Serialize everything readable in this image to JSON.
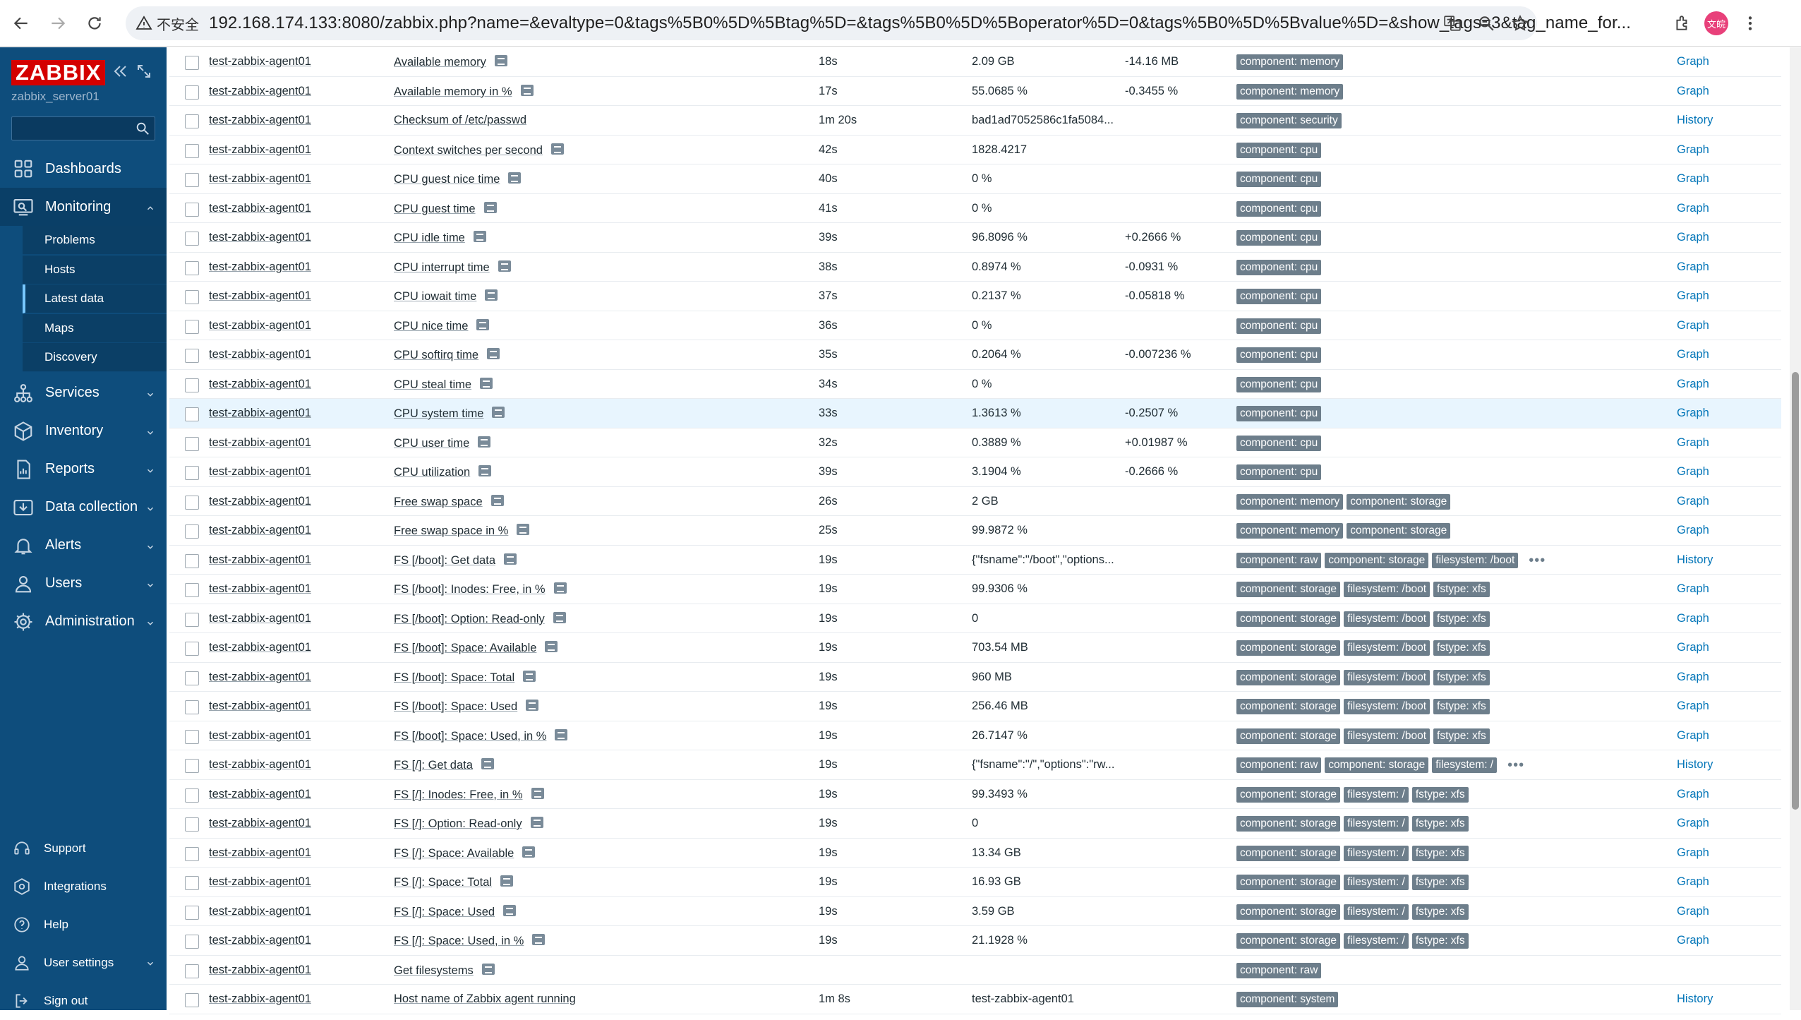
{
  "browser": {
    "insecure_label": "不安全",
    "url": "192.168.174.133:8080/zabbix.php?name=&evaltype=0&tags%5B0%5D%5Btag%5D=&tags%5B0%5D%5Boperator%5D=0&tags%5B0%5D%5Bvalue%5D=&show_tags=3&tag_name_for...",
    "avatar_label": "文皖"
  },
  "sidebar": {
    "logo": "ZABBIX",
    "server": "zabbix_server01",
    "search_placeholder": "",
    "menu": [
      {
        "label": "Dashboards",
        "icon": "dashboards-icon"
      },
      {
        "label": "Monitoring",
        "icon": "monitoring-icon",
        "expanded": true,
        "children": [
          "Problems",
          "Hosts",
          "Latest data",
          "Maps",
          "Discovery"
        ],
        "active_child": "Latest data"
      },
      {
        "label": "Services",
        "icon": "services-icon"
      },
      {
        "label": "Inventory",
        "icon": "inventory-icon"
      },
      {
        "label": "Reports",
        "icon": "reports-icon"
      },
      {
        "label": "Data collection",
        "icon": "data-collection-icon"
      },
      {
        "label": "Alerts",
        "icon": "alerts-icon"
      },
      {
        "label": "Users",
        "icon": "users-icon"
      },
      {
        "label": "Administration",
        "icon": "administration-icon"
      }
    ],
    "bottom": [
      {
        "label": "Support",
        "icon": "support-icon"
      },
      {
        "label": "Integrations",
        "icon": "integrations-icon"
      },
      {
        "label": "Help",
        "icon": "help-icon"
      },
      {
        "label": "User settings",
        "icon": "user-settings-icon"
      },
      {
        "label": "Sign out",
        "icon": "sign-out-icon"
      }
    ]
  },
  "rows": [
    {
      "host": "test-zabbix-agent01",
      "item": "Available memory",
      "qm": true,
      "age": "18s",
      "value": "2.09 GB",
      "change": "-14.16 MB",
      "tags": [
        "component: memory"
      ],
      "link": "Graph"
    },
    {
      "host": "test-zabbix-agent01",
      "item": "Available memory in %",
      "qm": true,
      "age": "17s",
      "value": "55.0685 %",
      "change": "-0.3455 %",
      "tags": [
        "component: memory"
      ],
      "link": "Graph"
    },
    {
      "host": "test-zabbix-agent01",
      "item": "Checksum of /etc/passwd",
      "qm": false,
      "age": "1m 20s",
      "value": "bad1ad7052586c1fa5084...",
      "change": "",
      "tags": [
        "component: security"
      ],
      "link": "History"
    },
    {
      "host": "test-zabbix-agent01",
      "item": "Context switches per second",
      "qm": true,
      "age": "42s",
      "value": "1828.4217",
      "change": "",
      "tags": [
        "component: cpu"
      ],
      "link": "Graph"
    },
    {
      "host": "test-zabbix-agent01",
      "item": "CPU guest nice time",
      "qm": true,
      "age": "40s",
      "value": "0 %",
      "change": "",
      "tags": [
        "component: cpu"
      ],
      "link": "Graph"
    },
    {
      "host": "test-zabbix-agent01",
      "item": "CPU guest time",
      "qm": true,
      "age": "41s",
      "value": "0 %",
      "change": "",
      "tags": [
        "component: cpu"
      ],
      "link": "Graph"
    },
    {
      "host": "test-zabbix-agent01",
      "item": "CPU idle time",
      "qm": true,
      "age": "39s",
      "value": "96.8096 %",
      "change": "+0.2666 %",
      "tags": [
        "component: cpu"
      ],
      "link": "Graph"
    },
    {
      "host": "test-zabbix-agent01",
      "item": "CPU interrupt time",
      "qm": true,
      "age": "38s",
      "value": "0.8974 %",
      "change": "-0.0931 %",
      "tags": [
        "component: cpu"
      ],
      "link": "Graph"
    },
    {
      "host": "test-zabbix-agent01",
      "item": "CPU iowait time",
      "qm": true,
      "age": "37s",
      "value": "0.2137 %",
      "change": "-0.05818 %",
      "tags": [
        "component: cpu"
      ],
      "link": "Graph"
    },
    {
      "host": "test-zabbix-agent01",
      "item": "CPU nice time",
      "qm": true,
      "age": "36s",
      "value": "0 %",
      "change": "",
      "tags": [
        "component: cpu"
      ],
      "link": "Graph"
    },
    {
      "host": "test-zabbix-agent01",
      "item": "CPU softirq time",
      "qm": true,
      "age": "35s",
      "value": "0.2064 %",
      "change": "-0.007236 %",
      "tags": [
        "component: cpu"
      ],
      "link": "Graph"
    },
    {
      "host": "test-zabbix-agent01",
      "item": "CPU steal time",
      "qm": true,
      "age": "34s",
      "value": "0 %",
      "change": "",
      "tags": [
        "component: cpu"
      ],
      "link": "Graph"
    },
    {
      "host": "test-zabbix-agent01",
      "item": "CPU system time",
      "qm": true,
      "age": "33s",
      "value": "1.3613 %",
      "change": "-0.2507 %",
      "tags": [
        "component: cpu"
      ],
      "link": "Graph",
      "highlight": true
    },
    {
      "host": "test-zabbix-agent01",
      "item": "CPU user time",
      "qm": true,
      "age": "32s",
      "value": "0.3889 %",
      "change": "+0.01987 %",
      "tags": [
        "component: cpu"
      ],
      "link": "Graph"
    },
    {
      "host": "test-zabbix-agent01",
      "item": "CPU utilization",
      "qm": true,
      "age": "39s",
      "value": "3.1904 %",
      "change": "-0.2666 %",
      "tags": [
        "component: cpu"
      ],
      "link": "Graph"
    },
    {
      "host": "test-zabbix-agent01",
      "item": "Free swap space",
      "qm": true,
      "age": "26s",
      "value": "2 GB",
      "change": "",
      "tags": [
        "component: memory",
        "component: storage"
      ],
      "link": "Graph"
    },
    {
      "host": "test-zabbix-agent01",
      "item": "Free swap space in %",
      "qm": true,
      "age": "25s",
      "value": "99.9872 %",
      "change": "",
      "tags": [
        "component: memory",
        "component: storage"
      ],
      "link": "Graph"
    },
    {
      "host": "test-zabbix-agent01",
      "item": "FS [/boot]: Get data",
      "qm": true,
      "age": "19s",
      "value": "{\"fsname\":\"/boot\",\"options...",
      "change": "",
      "tags": [
        "component: raw",
        "component: storage",
        "filesystem: /boot"
      ],
      "more": true,
      "link": "History"
    },
    {
      "host": "test-zabbix-agent01",
      "item": "FS [/boot]: Inodes: Free, in %",
      "qm": true,
      "age": "19s",
      "value": "99.9306 %",
      "change": "",
      "tags": [
        "component: storage",
        "filesystem: /boot",
        "fstype: xfs"
      ],
      "link": "Graph"
    },
    {
      "host": "test-zabbix-agent01",
      "item": "FS [/boot]: Option: Read-only",
      "qm": true,
      "age": "19s",
      "value": "0",
      "change": "",
      "tags": [
        "component: storage",
        "filesystem: /boot",
        "fstype: xfs"
      ],
      "link": "Graph"
    },
    {
      "host": "test-zabbix-agent01",
      "item": "FS [/boot]: Space: Available",
      "qm": true,
      "age": "19s",
      "value": "703.54 MB",
      "change": "",
      "tags": [
        "component: storage",
        "filesystem: /boot",
        "fstype: xfs"
      ],
      "link": "Graph"
    },
    {
      "host": "test-zabbix-agent01",
      "item": "FS [/boot]: Space: Total",
      "qm": true,
      "age": "19s",
      "value": "960 MB",
      "change": "",
      "tags": [
        "component: storage",
        "filesystem: /boot",
        "fstype: xfs"
      ],
      "link": "Graph"
    },
    {
      "host": "test-zabbix-agent01",
      "item": "FS [/boot]: Space: Used",
      "qm": true,
      "age": "19s",
      "value": "256.46 MB",
      "change": "",
      "tags": [
        "component: storage",
        "filesystem: /boot",
        "fstype: xfs"
      ],
      "link": "Graph"
    },
    {
      "host": "test-zabbix-agent01",
      "item": "FS [/boot]: Space: Used, in %",
      "qm": true,
      "age": "19s",
      "value": "26.7147 %",
      "change": "",
      "tags": [
        "component: storage",
        "filesystem: /boot",
        "fstype: xfs"
      ],
      "link": "Graph"
    },
    {
      "host": "test-zabbix-agent01",
      "item": "FS [/]: Get data",
      "qm": true,
      "age": "19s",
      "value": "{\"fsname\":\"/\",\"options\":\"rw...",
      "change": "",
      "tags": [
        "component: raw",
        "component: storage",
        "filesystem: /"
      ],
      "more": true,
      "link": "History"
    },
    {
      "host": "test-zabbix-agent01",
      "item": "FS [/]: Inodes: Free, in %",
      "qm": true,
      "age": "19s",
      "value": "99.3493 %",
      "change": "",
      "tags": [
        "component: storage",
        "filesystem: /",
        "fstype: xfs"
      ],
      "link": "Graph"
    },
    {
      "host": "test-zabbix-agent01",
      "item": "FS [/]: Option: Read-only",
      "qm": true,
      "age": "19s",
      "value": "0",
      "change": "",
      "tags": [
        "component: storage",
        "filesystem: /",
        "fstype: xfs"
      ],
      "link": "Graph"
    },
    {
      "host": "test-zabbix-agent01",
      "item": "FS [/]: Space: Available",
      "qm": true,
      "age": "19s",
      "value": "13.34 GB",
      "change": "",
      "tags": [
        "component: storage",
        "filesystem: /",
        "fstype: xfs"
      ],
      "link": "Graph"
    },
    {
      "host": "test-zabbix-agent01",
      "item": "FS [/]: Space: Total",
      "qm": true,
      "age": "19s",
      "value": "16.93 GB",
      "change": "",
      "tags": [
        "component: storage",
        "filesystem: /",
        "fstype: xfs"
      ],
      "link": "Graph"
    },
    {
      "host": "test-zabbix-agent01",
      "item": "FS [/]: Space: Used",
      "qm": true,
      "age": "19s",
      "value": "3.59 GB",
      "change": "",
      "tags": [
        "component: storage",
        "filesystem: /",
        "fstype: xfs"
      ],
      "link": "Graph"
    },
    {
      "host": "test-zabbix-agent01",
      "item": "FS [/]: Space: Used, in %",
      "qm": true,
      "age": "19s",
      "value": "21.1928 %",
      "change": "",
      "tags": [
        "component: storage",
        "filesystem: /",
        "fstype: xfs"
      ],
      "link": "Graph"
    },
    {
      "host": "test-zabbix-agent01",
      "item": "Get filesystems",
      "qm": true,
      "age": "",
      "value": "",
      "change": "",
      "tags": [
        "component: raw"
      ],
      "link": ""
    },
    {
      "host": "test-zabbix-agent01",
      "item": "Host name of Zabbix agent running",
      "qm": false,
      "age": "1m 8s",
      "value": "test-zabbix-agent01",
      "change": "",
      "tags": [
        "component: system"
      ],
      "link": "History"
    }
  ]
}
